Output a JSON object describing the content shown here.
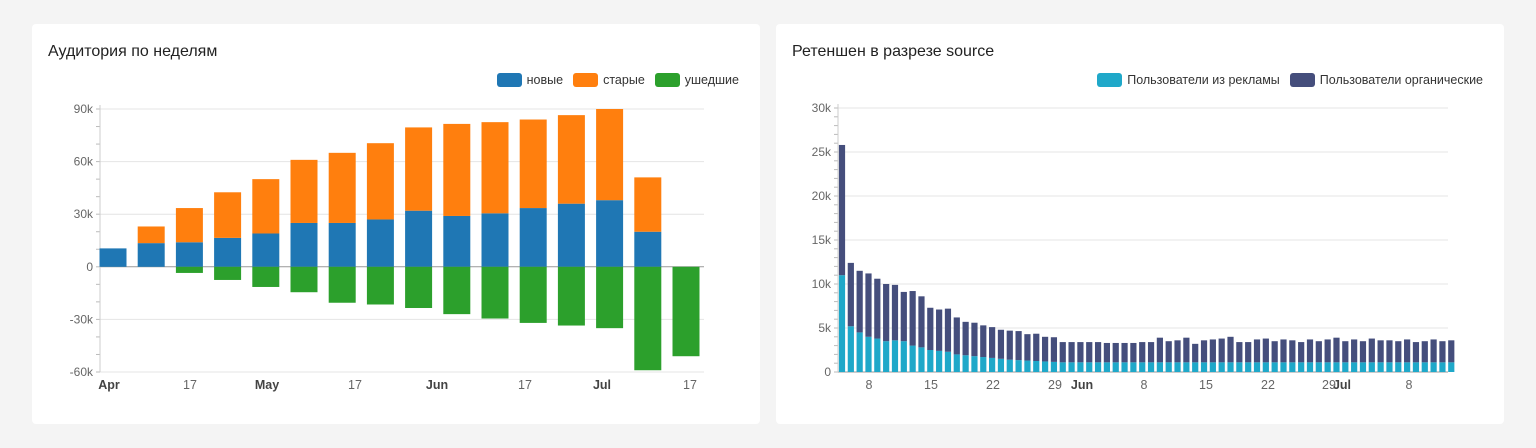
{
  "chart_data": [
    {
      "type": "bar",
      "stacked": true,
      "title": "Аудитория по неделям",
      "legend_position": "top-right",
      "x_tick_labels": [
        "Apr",
        "17",
        "May",
        "17",
        "Jun",
        "17",
        "Jul",
        "17"
      ],
      "bold_ticks": [
        "Apr",
        "May",
        "Jun",
        "Jul"
      ],
      "y_tick_labels": [
        "90k",
        "60k",
        "30k",
        "0",
        "-30k",
        "-60k"
      ],
      "ylim": [
        -60000,
        90000
      ],
      "grid": true,
      "categories": [
        "w1",
        "w2",
        "w3",
        "w4",
        "w5",
        "w6",
        "w7",
        "w8",
        "w9",
        "w10",
        "w11",
        "w12",
        "w13",
        "w14",
        "w15",
        "w16"
      ],
      "series": [
        {
          "name": "новые",
          "color": "#1f77b4",
          "values": [
            10500,
            13500,
            14000,
            16500,
            19000,
            25000,
            25000,
            27000,
            32000,
            29000,
            30500,
            33500,
            36000,
            38000,
            20000,
            0
          ]
        },
        {
          "name": "старые",
          "color": "#ff7f0e",
          "values": [
            0,
            9500,
            19500,
            26000,
            31000,
            36000,
            40000,
            43500,
            47500,
            52500,
            52000,
            50500,
            50500,
            52000,
            31000,
            0
          ]
        },
        {
          "name": "ушедшие",
          "color": "#2ca02c",
          "values": [
            0,
            0,
            -3500,
            -7500,
            -11500,
            -14500,
            -20500,
            -21500,
            -23500,
            -27000,
            -29500,
            -32000,
            -33500,
            -35000,
            -59000,
            -51000
          ]
        }
      ]
    },
    {
      "type": "bar",
      "stacked": true,
      "title": "Ретеншен в разрезе source",
      "legend_position": "top-right",
      "x_tick_labels": [
        "8",
        "15",
        "22",
        "29",
        "Jun",
        "8",
        "15",
        "22",
        "29",
        "Jul",
        "8"
      ],
      "bold_ticks": [
        "Jun",
        "Jul"
      ],
      "y_tick_labels": [
        "30k",
        "25k",
        "20k",
        "15k",
        "10k",
        "5k",
        "0"
      ],
      "ylim": [
        0,
        30000
      ],
      "grid": true,
      "series": [
        {
          "name": "Пользователи из рекламы",
          "color": "#1fa8c9",
          "values": [
            11000,
            5200,
            4500,
            4000,
            3800,
            3500,
            3600,
            3500,
            3000,
            2800,
            2500,
            2400,
            2300,
            2000,
            1900,
            1800,
            1700,
            1600,
            1500,
            1400,
            1350,
            1300,
            1250,
            1200,
            1150,
            1100,
            1100,
            1100,
            1100,
            1100,
            1100,
            1100,
            1100,
            1100,
            1100,
            1100,
            1100,
            1100,
            1100,
            1100,
            1100,
            1100,
            1100,
            1100,
            1100,
            1100,
            1100,
            1100,
            1100,
            1100,
            1100,
            1100,
            1100,
            1100,
            1100,
            1100,
            1100,
            1100,
            1100,
            1100,
            1100,
            1100,
            1100,
            1100,
            1100,
            1100,
            1100,
            1100,
            1100,
            1100
          ]
        },
        {
          "name": "Пользователи органические",
          "color": "#454e7c",
          "values": [
            14800,
            7200,
            7000,
            7200,
            6800,
            6500,
            6300,
            5600,
            6200,
            5800,
            4800,
            4700,
            4900,
            4200,
            3800,
            3800,
            3600,
            3500,
            3300,
            3300,
            3300,
            3000,
            3100,
            2800,
            2800,
            2300,
            2300,
            2300,
            2300,
            2300,
            2200,
            2200,
            2200,
            2200,
            2300,
            2300,
            2800,
            2400,
            2500,
            2800,
            2100,
            2500,
            2600,
            2700,
            2900,
            2300,
            2300,
            2600,
            2700,
            2400,
            2600,
            2500,
            2300,
            2600,
            2400,
            2600,
            2800,
            2400,
            2600,
            2400,
            2700,
            2500,
            2500,
            2400,
            2600,
            2300,
            2400,
            2600,
            2400,
            2500
          ]
        }
      ]
    }
  ]
}
